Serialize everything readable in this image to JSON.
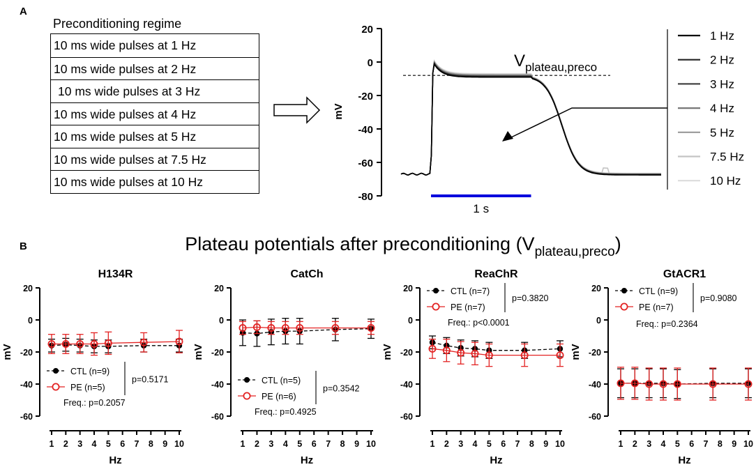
{
  "panel_labels": {
    "a": "A",
    "b": "B"
  },
  "regime": {
    "title": "Preconditioning regime",
    "rows": [
      "10 ms wide pulses at 1 Hz",
      "10 ms wide pulses at 2 Hz",
      "10 ms wide pulses at 3 Hz",
      "10 ms wide pulses at 4 Hz",
      "10 ms wide pulses at 5 Hz",
      "10 ms wide pulses at 7.5 Hz",
      "10 ms wide pulses at 10 Hz"
    ]
  },
  "trace_plot": {
    "ylabel": "mV",
    "yticks": [
      20,
      0,
      -20,
      -40,
      -60,
      -80
    ],
    "ylim": [
      -80,
      20
    ],
    "time_range_s": [
      -0.3,
      2.3
    ],
    "stim_start_s": 0,
    "stim_duration_s": 1,
    "plateau_mv": -8,
    "rest_mv": -67,
    "peak_mv": 1,
    "scale_bar_label": "1 s",
    "scale_bar_color": "#0000dd",
    "annotation_main": "V",
    "annotation_sub": "plateau,preco",
    "legend": [
      {
        "label": "1 Hz",
        "color": "#000000"
      },
      {
        "label": "2 Hz",
        "color": "#222222"
      },
      {
        "label": "3 Hz",
        "color": "#444444"
      },
      {
        "label": "4 Hz",
        "color": "#777777"
      },
      {
        "label": "5 Hz",
        "color": "#999999"
      },
      {
        "label": "7.5 Hz",
        "color": "#c4c4c4"
      },
      {
        "label": "10 Hz",
        "color": "#dcdcdc"
      }
    ]
  },
  "section_title": {
    "main": "Plateau potentials after preconditioning (V",
    "sub": "plateau,preco",
    "close": ")"
  },
  "colors": {
    "ctl": "#000000",
    "pe": "#e32222"
  },
  "chart_data": [
    {
      "type": "scatter",
      "title": "H134R",
      "xlabel": "Hz",
      "ylabel": "mV",
      "ylim": [
        -60,
        20
      ],
      "yticks": [
        20,
        0,
        -20,
        -40,
        -60
      ],
      "x": [
        1,
        2,
        3,
        4,
        5,
        7.5,
        10
      ],
      "xticks": [
        1,
        2,
        3,
        4,
        5,
        6,
        7,
        8,
        9,
        10
      ],
      "series": [
        {
          "name": "CTL (n=9)",
          "values": [
            -16,
            -15.5,
            -16,
            -16.5,
            -16.5,
            -16,
            -16
          ],
          "errors": [
            4,
            4,
            4,
            4,
            4,
            4,
            4
          ]
        },
        {
          "name": "PE (n=5)",
          "values": [
            -15,
            -15,
            -15,
            -15,
            -14.5,
            -14,
            -13.5
          ],
          "errors": [
            6,
            6,
            6,
            7,
            7,
            6,
            7
          ]
        }
      ],
      "stats": {
        "p": "p=0.5171",
        "freq": "Freq.: p=0.2057"
      },
      "legend_position": "bottom-left"
    },
    {
      "type": "scatter",
      "title": "CatCh",
      "xlabel": "Hz",
      "ylabel": "mV",
      "ylim": [
        -60,
        20
      ],
      "yticks": [
        20,
        0,
        -20,
        -40,
        -60
      ],
      "x": [
        1,
        2,
        3,
        4,
        5,
        7.5,
        10
      ],
      "xticks": [
        1,
        2,
        3,
        4,
        5,
        6,
        7,
        8,
        9,
        10
      ],
      "series": [
        {
          "name": "CTL (n=5)",
          "values": [
            -8,
            -8.5,
            -7.5,
            -7,
            -7,
            -6,
            -5.5
          ],
          "errors": [
            8,
            8,
            8,
            8,
            8,
            7,
            6
          ]
        },
        {
          "name": "PE (n=6)",
          "values": [
            -5,
            -4.5,
            -5,
            -5,
            -5,
            -5,
            -5
          ],
          "errors": [
            4,
            4,
            4,
            4,
            4,
            4,
            4
          ]
        }
      ],
      "stats": {
        "p": "p=0.3542",
        "freq": "Freq.: p=0.4925"
      },
      "legend_position": "bottom-left"
    },
    {
      "type": "scatter",
      "title": "ReaChR",
      "xlabel": "Hz",
      "ylabel": "mV",
      "ylim": [
        -60,
        20
      ],
      "yticks": [
        20,
        0,
        -20,
        -40,
        -60
      ],
      "x": [
        1,
        2,
        3,
        4,
        5,
        7.5,
        10
      ],
      "xticks": [
        1,
        2,
        3,
        4,
        5,
        6,
        7,
        8,
        9,
        10
      ],
      "series": [
        {
          "name": "CTL (n=7)",
          "values": [
            -14,
            -16,
            -17.5,
            -18,
            -19,
            -19,
            -18
          ],
          "errors": [
            4,
            5,
            5,
            5,
            5,
            5,
            5
          ]
        },
        {
          "name": "PE (n=7)",
          "values": [
            -18,
            -19,
            -20.5,
            -21,
            -22,
            -22,
            -22
          ],
          "errors": [
            6,
            7,
            7,
            7,
            7,
            7,
            7
          ]
        }
      ],
      "stats": {
        "p": "p=0.3820",
        "freq": "Freq.: p<0.0001"
      },
      "legend_position": "top-left"
    },
    {
      "type": "scatter",
      "title": "GtACR1",
      "xlabel": "Hz",
      "ylabel": "mV",
      "ylim": [
        -60,
        20
      ],
      "yticks": [
        20,
        0,
        -20,
        -40,
        -60
      ],
      "x": [
        1,
        2,
        3,
        4,
        5,
        7.5,
        10
      ],
      "xticks": [
        1,
        2,
        3,
        4,
        5,
        6,
        7,
        8,
        9,
        10
      ],
      "series": [
        {
          "name": "CTL (n=9)",
          "values": [
            -39.5,
            -39.5,
            -39.5,
            -39.5,
            -40,
            -39.5,
            -39.5
          ],
          "errors": [
            9,
            9,
            9,
            9,
            9,
            9,
            9
          ]
        },
        {
          "name": "PE (n=7)",
          "values": [
            -39.5,
            -39.5,
            -40,
            -40,
            -40,
            -40,
            -40
          ],
          "errors": [
            10,
            10,
            10,
            10,
            10,
            10,
            10
          ]
        }
      ],
      "stats": {
        "p": "p=0.9080",
        "freq": "Freq.: p=0.2364"
      },
      "legend_position": "top-left"
    }
  ]
}
